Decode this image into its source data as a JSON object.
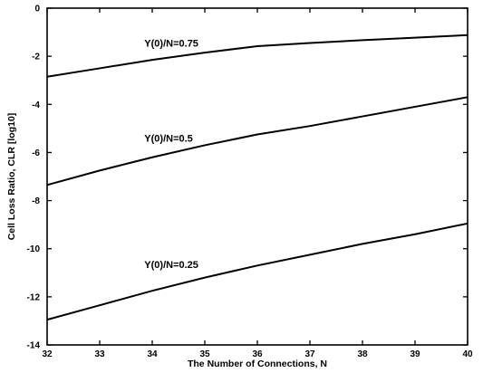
{
  "chart_data": {
    "type": "line",
    "title": "",
    "xlabel": "The Number of Connections, N",
    "ylabel": "Cell Loss Ratio, CLR [log10]",
    "xlim": [
      32,
      40
    ],
    "ylim": [
      -14,
      0
    ],
    "x_ticks": [
      32,
      33,
      34,
      35,
      36,
      37,
      38,
      39,
      40
    ],
    "y_ticks": [
      0,
      -2,
      -4,
      -6,
      -8,
      -10,
      -12,
      -14
    ],
    "x_tick_labels": [
      "32",
      "33",
      "34",
      "35",
      "36",
      "37",
      "38",
      "39",
      "40"
    ],
    "y_tick_labels": [
      "0",
      "-2",
      "-4",
      "-6",
      "-8",
      "-10",
      "-12",
      "-14"
    ],
    "grid": false,
    "series": [
      {
        "name": "Y(0)/N=0.75",
        "x": [
          32,
          33,
          34,
          35,
          36,
          37,
          38,
          39,
          40
        ],
        "values": [
          -2.85,
          -2.5,
          -2.15,
          -1.85,
          -1.58,
          -1.45,
          -1.33,
          -1.23,
          -1.12
        ]
      },
      {
        "name": "Y(0)/N=0.5",
        "x": [
          32,
          33,
          34,
          35,
          36,
          37,
          38,
          39,
          40
        ],
        "values": [
          -7.35,
          -6.75,
          -6.2,
          -5.7,
          -5.25,
          -4.9,
          -4.5,
          -4.1,
          -3.7
        ]
      },
      {
        "name": "Y(0)/N=0.25",
        "x": [
          32,
          33,
          34,
          35,
          36,
          37,
          38,
          39,
          40
        ],
        "values": [
          -12.95,
          -12.35,
          -11.75,
          -11.2,
          -10.7,
          -10.25,
          -9.8,
          -9.4,
          -8.95
        ]
      }
    ],
    "annotations": [
      {
        "text": "Y(0)/N=0.75",
        "x": 33.85,
        "y": -1.6
      },
      {
        "text": "Y(0)/N=0.5",
        "x": 33.85,
        "y": -5.55
      },
      {
        "text": "Y(0)/N=0.25",
        "x": 33.85,
        "y": -10.8
      }
    ]
  }
}
